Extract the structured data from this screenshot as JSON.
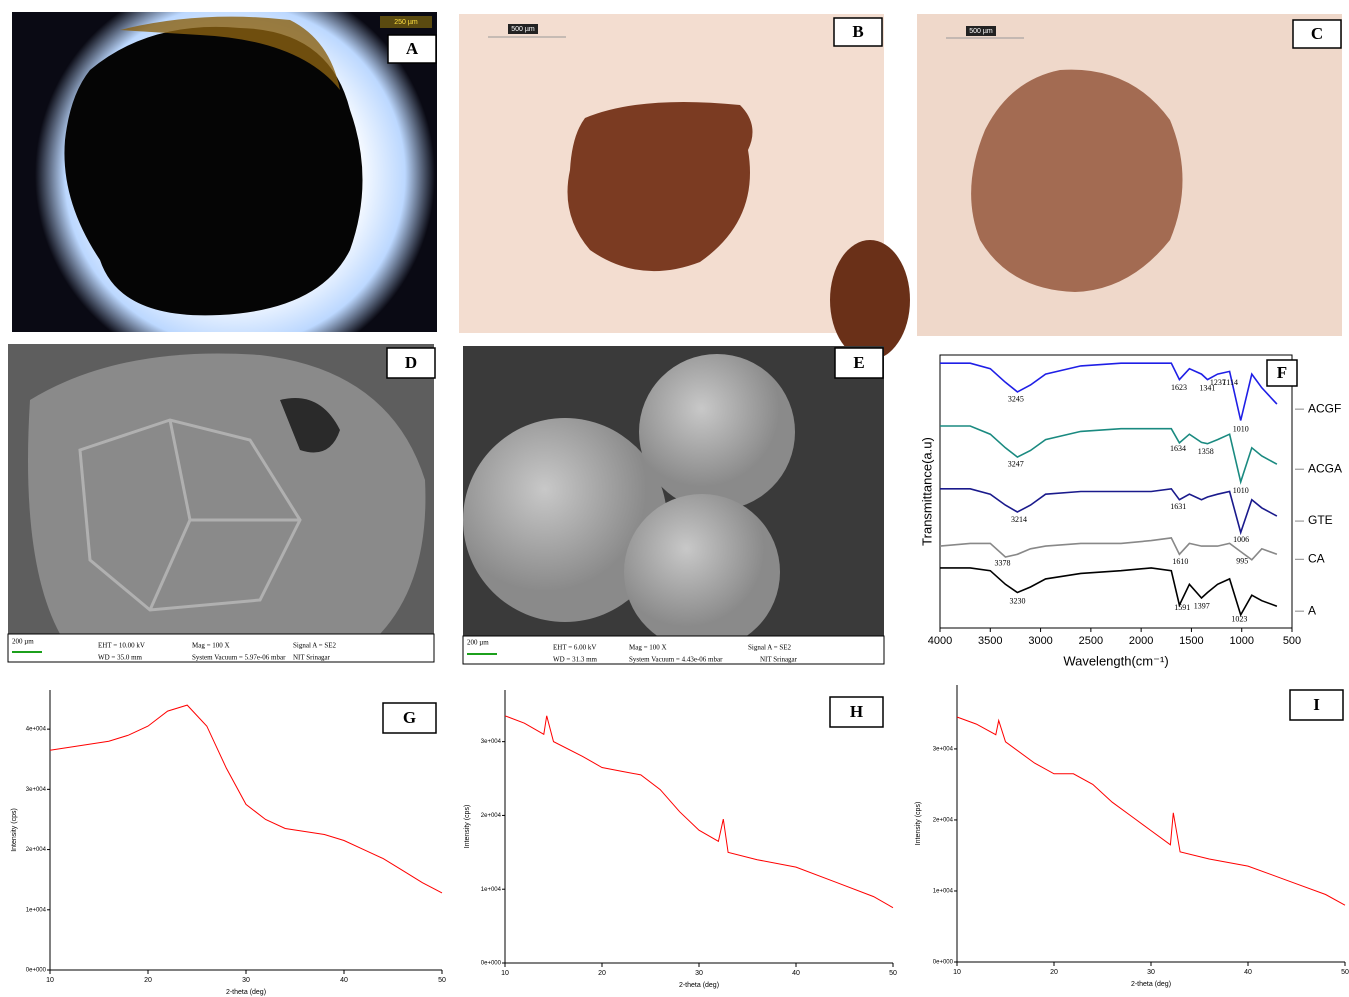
{
  "panels": [
    {
      "label": "A",
      "scale_bar": "250 µm"
    },
    {
      "label": "B",
      "scale_bar": "500 µm"
    },
    {
      "label": "C",
      "scale_bar": "500 µm"
    },
    {
      "label": "D",
      "scale_bar": "200 µm",
      "info": [
        "EHT = 10.00 kV",
        "WD = 35.0 mm",
        "Mag = 100 X",
        "System Vacuum = 5.97e-06 mbar",
        "Signal A = SE2",
        "NIT Srinagar"
      ]
    },
    {
      "label": "E",
      "scale_bar": "200 µm",
      "info": [
        "EHT = 6.00 kV",
        "WD = 31.3 mm",
        "Mag = 100 X",
        "System Vacuum = 4.43e-06 mbar",
        "Signal A = SE2",
        "NIT Srinagar"
      ]
    }
  ],
  "chart_data": [
    {
      "type": "line",
      "label": "F",
      "ylabel": "Transmittance(a.u)",
      "xlabel": "Wavelength(cm⁻¹)",
      "x": [
        4000,
        3700,
        3500,
        3350,
        3230,
        3100,
        2950,
        2600,
        2200,
        1900,
        1700,
        1620,
        1520,
        1400,
        1340,
        1240,
        1120,
        1010,
        900,
        800,
        650
      ],
      "xlim": [
        4000,
        500
      ],
      "xticks": [
        4000,
        3500,
        3000,
        2500,
        2000,
        1500,
        1000,
        500
      ],
      "ylim": [
        0,
        100
      ],
      "series": [
        {
          "name": "ACGF",
          "color": "#1f1fe6",
          "values": [
            97,
            97,
            95,
            90,
            86.5,
            89,
            93,
            96,
            97,
            97,
            97,
            91,
            95,
            93,
            91,
            93,
            94,
            76,
            93,
            88,
            82
          ],
          "peaks": [
            3245,
            1623,
            1341,
            1237,
            1114,
            1010
          ]
        },
        {
          "name": "ACGA",
          "color": "#1a8a80",
          "values": [
            74,
            74,
            71,
            66,
            62.6,
            65,
            69,
            72,
            73,
            73,
            73,
            67.8,
            71,
            68,
            67.5,
            69,
            71,
            53.5,
            66,
            63,
            60
          ],
          "peaks": [
            3247,
            1634,
            1358,
            1010
          ]
        },
        {
          "name": "GTE",
          "color": "#1a1a8c",
          "values": [
            51,
            51,
            49,
            45,
            42.5,
            45,
            49,
            50,
            50,
            50,
            51,
            47,
            49,
            47,
            48,
            49,
            50,
            35,
            47,
            44,
            41
          ],
          "peaks": [
            3214,
            1631,
            1006
          ]
        },
        {
          "name": "CA",
          "color": "#888888",
          "values": [
            30,
            31,
            31,
            26,
            27,
            29,
            30,
            31,
            31,
            32,
            33,
            27,
            31,
            30,
            30,
            30,
            31,
            28,
            25,
            29,
            27
          ],
          "peaks": [
            3378,
            1610,
            995
          ]
        },
        {
          "name": "A",
          "color": "#000000",
          "values": [
            22,
            22,
            21,
            16,
            13,
            15,
            18,
            20,
            21,
            22,
            21,
            8.4,
            16,
            11,
            13,
            16,
            18,
            4.8,
            12,
            10,
            8
          ],
          "peaks": [
            3230,
            1591,
            1397,
            1023
          ]
        }
      ]
    },
    {
      "type": "line",
      "label": "G",
      "xlabel": "2-theta (deg)",
      "ylabel": "Intensity (cps)",
      "x": [
        10,
        12,
        14,
        16,
        18,
        20,
        22,
        24,
        26,
        28,
        30,
        32,
        34,
        36,
        38,
        40,
        42,
        44,
        46,
        48,
        50
      ],
      "xlim": [
        10,
        50
      ],
      "xticks": [
        10,
        20,
        30,
        40,
        50
      ],
      "ylim": [
        0,
        46500
      ],
      "yticks": [
        {
          "value": 0,
          "label": "0e+000"
        },
        {
          "value": 10000,
          "label": "1e+004"
        },
        {
          "value": 20000,
          "label": "2e+004"
        },
        {
          "value": 30000,
          "label": "3e+004"
        },
        {
          "value": 40000,
          "label": "4e+004"
        }
      ],
      "series": [
        {
          "color": "#ff0000",
          "values": [
            36500,
            37000,
            37500,
            38000,
            39000,
            40500,
            43000,
            44000,
            40500,
            33500,
            27500,
            25000,
            23500,
            23000,
            22500,
            21500,
            20000,
            18500,
            16500,
            14500,
            12800
          ]
        }
      ]
    },
    {
      "type": "line",
      "label": "H",
      "xlabel": "2-theta (deg)",
      "ylabel": "Intensity (cps)",
      "x": [
        10,
        12,
        14,
        14.3,
        15,
        18,
        20,
        22,
        24,
        26,
        28,
        30,
        32,
        32.5,
        33,
        36,
        40,
        44,
        48,
        50
      ],
      "xlim": [
        10,
        50
      ],
      "xticks": [
        10,
        20,
        30,
        40,
        50
      ],
      "ylim": [
        0,
        37000
      ],
      "yticks": [
        {
          "value": 0,
          "label": "0e+000"
        },
        {
          "value": 10000,
          "label": "1e+004"
        },
        {
          "value": 20000,
          "label": "2e+004"
        },
        {
          "value": 30000,
          "label": "3e+004"
        }
      ],
      "series": [
        {
          "color": "#ff0000",
          "values": [
            33500,
            32500,
            31000,
            33500,
            30000,
            28000,
            26500,
            26000,
            25500,
            23500,
            20500,
            18000,
            16500,
            19500,
            15000,
            14000,
            13000,
            11000,
            9000,
            7500
          ]
        }
      ]
    },
    {
      "type": "line",
      "label": "I",
      "xlabel": "2-theta (deg)",
      "ylabel": "Intensity (cps)",
      "x": [
        10,
        12,
        14,
        14.3,
        15,
        18,
        20,
        22,
        24,
        26,
        28,
        30,
        32,
        32.3,
        33,
        36,
        40,
        44,
        48,
        50
      ],
      "xlim": [
        10,
        50
      ],
      "xticks": [
        10,
        20,
        30,
        40,
        50
      ],
      "ylim": [
        0,
        39000
      ],
      "yticks": [
        {
          "value": 0,
          "label": "0e+000"
        },
        {
          "value": 10000,
          "label": "1e+004"
        },
        {
          "value": 20000,
          "label": "2e+004"
        },
        {
          "value": 30000,
          "label": "3e+004"
        }
      ],
      "series": [
        {
          "color": "#ff0000",
          "values": [
            34500,
            33500,
            32000,
            34000,
            31000,
            28000,
            26500,
            26500,
            25000,
            22500,
            20500,
            18500,
            16500,
            21000,
            15500,
            14500,
            13500,
            11500,
            9500,
            8000
          ]
        }
      ]
    }
  ]
}
